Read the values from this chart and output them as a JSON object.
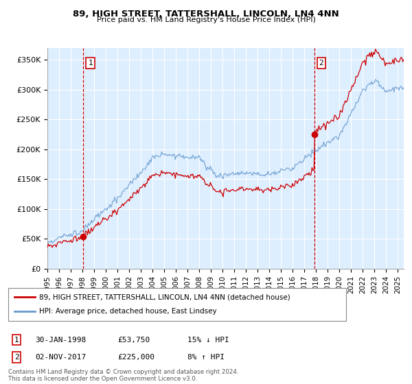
{
  "title": "89, HIGH STREET, TATTERSHALL, LINCOLN, LN4 4NN",
  "subtitle": "Price paid vs. HM Land Registry's House Price Index (HPI)",
  "ylabel_ticks": [
    "£0",
    "£50K",
    "£100K",
    "£150K",
    "£200K",
    "£250K",
    "£300K",
    "£350K"
  ],
  "ylabel_values": [
    0,
    50000,
    100000,
    150000,
    200000,
    250000,
    300000,
    350000
  ],
  "ylim": [
    0,
    370000
  ],
  "xlim_start": 1995.0,
  "xlim_end": 2025.5,
  "background_color": "#ddeeff",
  "grid_color": "#ffffff",
  "sale1_x": 1998.08,
  "sale1_y": 53750,
  "sale1_label": "1",
  "sale1_date": "30-JAN-1998",
  "sale1_price": "£53,750",
  "sale1_hpi": "15% ↓ HPI",
  "sale2_x": 2017.84,
  "sale2_y": 225000,
  "sale2_label": "2",
  "sale2_date": "02-NOV-2017",
  "sale2_price": "£225,000",
  "sale2_hpi": "8% ↑ HPI",
  "line1_color": "#cc0000",
  "line2_color": "#6699cc",
  "legend1_label": "89, HIGH STREET, TATTERSHALL, LINCOLN, LN4 4NN (detached house)",
  "legend2_label": "HPI: Average price, detached house, East Lindsey",
  "footer": "Contains HM Land Registry data © Crown copyright and database right 2024.\nThis data is licensed under the Open Government Licence v3.0.",
  "xticks": [
    1995,
    1996,
    1997,
    1998,
    1999,
    2000,
    2001,
    2002,
    2003,
    2004,
    2005,
    2006,
    2007,
    2008,
    2009,
    2010,
    2011,
    2012,
    2013,
    2014,
    2015,
    2016,
    2017,
    2018,
    2019,
    2020,
    2021,
    2022,
    2023,
    2024,
    2025
  ]
}
